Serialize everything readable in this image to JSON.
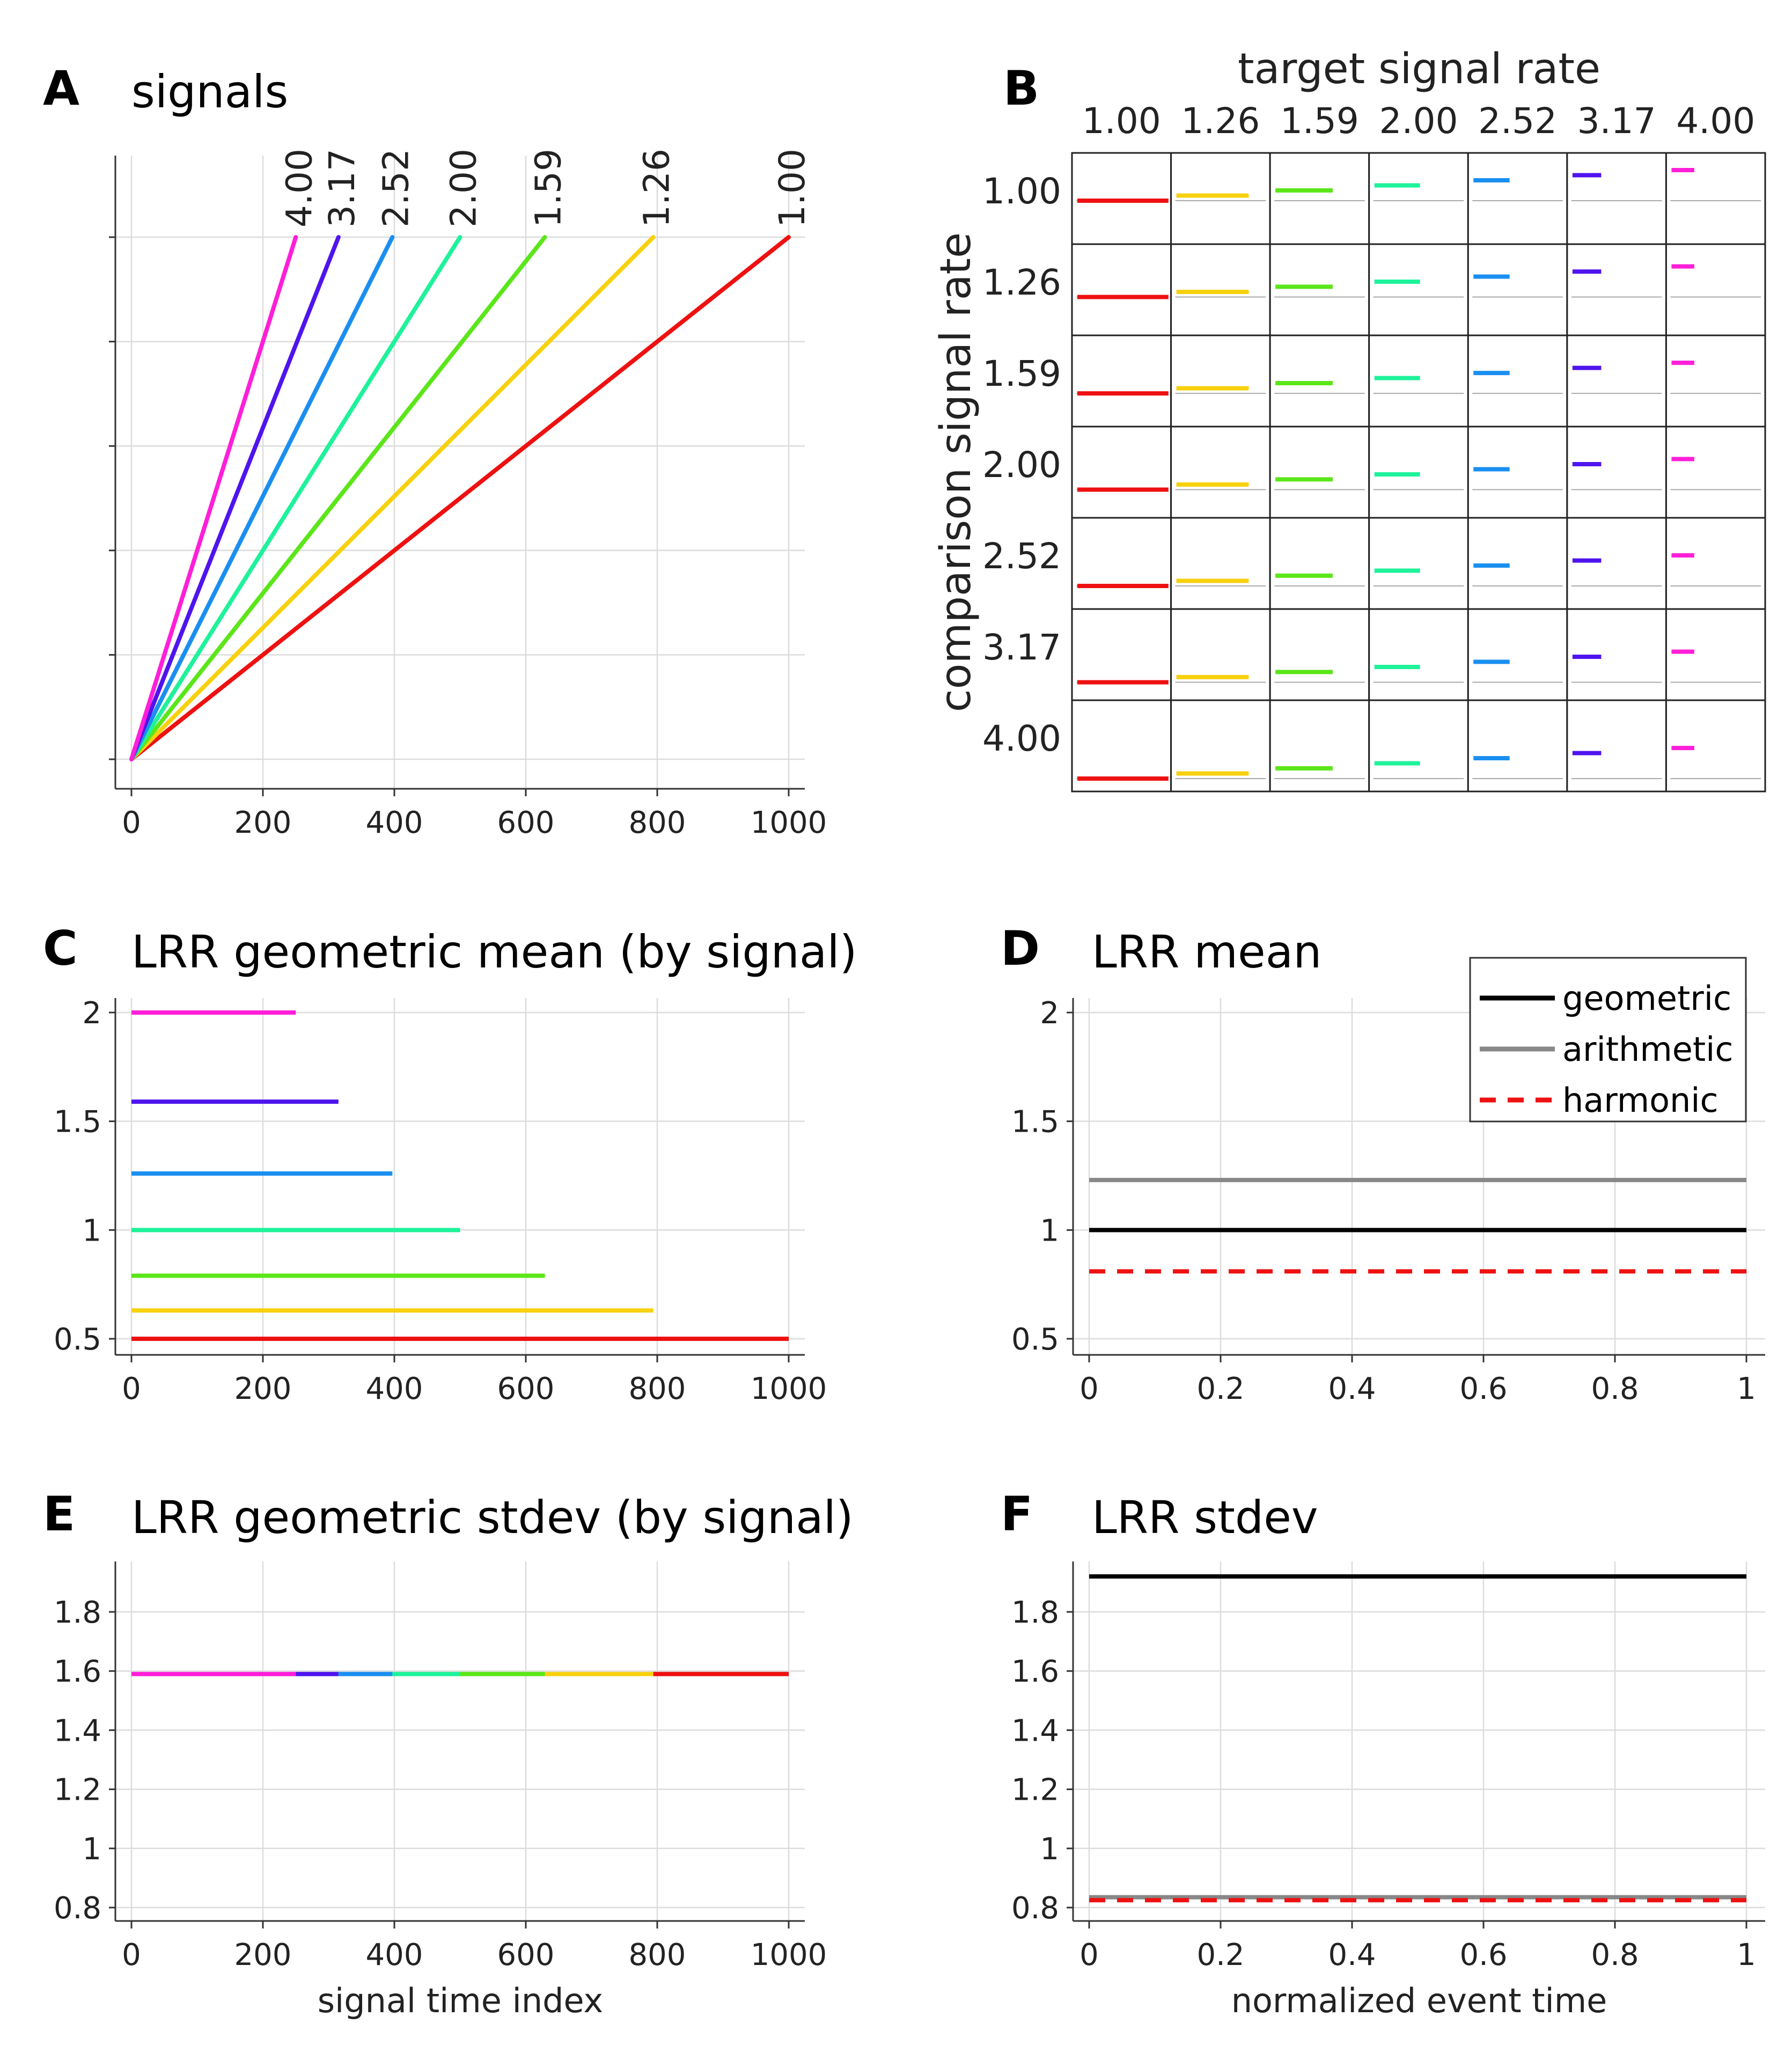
{
  "colors": [
    "#ee1111",
    "#f7d10e",
    "#5be619",
    "#1ef29a",
    "#1a8ff0",
    "#4f14ee",
    "#ff1fd8"
  ],
  "rate_labels": [
    "1.00",
    "1.26",
    "1.59",
    "2.00",
    "2.52",
    "3.17",
    "4.00"
  ],
  "panels": {
    "A": {
      "letter": "A",
      "title": "signals"
    },
    "B": {
      "letter": "B",
      "title": "target signal rate",
      "ylabel": "comparison signal rate"
    },
    "C": {
      "letter": "C",
      "title": "LRR geometric mean (by signal)"
    },
    "D": {
      "letter": "D",
      "title": "LRR mean"
    },
    "E": {
      "letter": "E",
      "title": "LRR geometric stdev (by signal)",
      "xlabel": "signal time index"
    },
    "F": {
      "letter": "F",
      "title": "LRR stdev",
      "xlabel": "normalized event time"
    }
  },
  "legend": {
    "geometric": "geometric",
    "arithmetic": "arithmetic",
    "harmonic": "harmonic"
  },
  "chart_data": [
    {
      "panel": "A",
      "type": "line",
      "title": "signals",
      "x_ticks": [
        "0",
        "200",
        "400",
        "600",
        "800",
        "1000"
      ],
      "xlim": [
        0,
        1000
      ],
      "ylim": [
        0,
        1
      ],
      "grid": true,
      "series": [
        {
          "name": "1.00",
          "x": [
            0,
            1000
          ],
          "y": [
            0,
            1
          ]
        },
        {
          "name": "1.26",
          "x": [
            0,
            794
          ],
          "y": [
            0,
            1
          ]
        },
        {
          "name": "1.59",
          "x": [
            0,
            629
          ],
          "y": [
            0,
            1
          ]
        },
        {
          "name": "2.00",
          "x": [
            0,
            500
          ],
          "y": [
            0,
            1
          ]
        },
        {
          "name": "2.52",
          "x": [
            0,
            397
          ],
          "y": [
            0,
            1
          ]
        },
        {
          "name": "3.17",
          "x": [
            0,
            315
          ],
          "y": [
            0,
            1
          ]
        },
        {
          "name": "4.00",
          "x": [
            0,
            250
          ],
          "y": [
            0,
            1
          ]
        }
      ]
    },
    {
      "panel": "B",
      "type": "heatmap",
      "title": "target signal rate",
      "xlabel": "target signal rate",
      "ylabel": "comparison signal rate",
      "columns": [
        "1.00",
        "1.26",
        "1.59",
        "2.00",
        "2.52",
        "3.17",
        "4.00"
      ],
      "rows": [
        "1.00",
        "1.26",
        "1.59",
        "2.00",
        "2.52",
        "3.17",
        "4.00"
      ]
    },
    {
      "panel": "C",
      "type": "line",
      "title": "LRR geometric mean (by signal)",
      "x_ticks": [
        "0",
        "200",
        "400",
        "600",
        "800",
        "1000"
      ],
      "xlim": [
        0,
        1000
      ],
      "y_ticks": [
        "0.5",
        "1",
        "1.5",
        "2"
      ],
      "grid": true,
      "series": [
        {
          "name": "1.00",
          "x": [
            0,
            1000
          ],
          "y": [
            0.5,
            0.5
          ]
        },
        {
          "name": "1.26",
          "x": [
            0,
            794
          ],
          "y": [
            0.63,
            0.63
          ]
        },
        {
          "name": "1.59",
          "x": [
            0,
            629
          ],
          "y": [
            0.79,
            0.79
          ]
        },
        {
          "name": "2.00",
          "x": [
            0,
            500
          ],
          "y": [
            1.0,
            1.0
          ]
        },
        {
          "name": "2.52",
          "x": [
            0,
            397
          ],
          "y": [
            1.26,
            1.26
          ]
        },
        {
          "name": "3.17",
          "x": [
            0,
            315
          ],
          "y": [
            1.59,
            1.59
          ]
        },
        {
          "name": "4.00",
          "x": [
            0,
            250
          ],
          "y": [
            2.0,
            2.0
          ]
        }
      ]
    },
    {
      "panel": "D",
      "type": "line",
      "title": "LRR mean",
      "x_ticks": [
        "0",
        "0.2",
        "0.4",
        "0.6",
        "0.8",
        "1"
      ],
      "xlim": [
        0,
        1
      ],
      "y_ticks": [
        "0.5",
        "1",
        "1.5",
        "2"
      ],
      "grid": true,
      "legend_position": "top-right",
      "series": [
        {
          "name": "geometric",
          "x": [
            0,
            1
          ],
          "y": [
            1.0,
            1.0
          ]
        },
        {
          "name": "arithmetic",
          "x": [
            0,
            1
          ],
          "y": [
            1.23,
            1.23
          ]
        },
        {
          "name": "harmonic",
          "x": [
            0,
            1
          ],
          "y": [
            0.81,
            0.81
          ]
        }
      ]
    },
    {
      "panel": "E",
      "type": "line",
      "title": "LRR geometric stdev (by signal)",
      "xlabel": "signal time index",
      "x_ticks": [
        "0",
        "200",
        "400",
        "600",
        "800",
        "1000"
      ],
      "xlim": [
        0,
        1000
      ],
      "y_ticks": [
        "0.8",
        "1",
        "1.2",
        "1.4",
        "1.6",
        "1.8"
      ],
      "grid": true,
      "series": [
        {
          "name": "4.00",
          "x": [
            0,
            250
          ],
          "y": [
            1.59,
            1.59
          ]
        },
        {
          "name": "3.17",
          "x": [
            250,
            315
          ],
          "y": [
            1.59,
            1.59
          ]
        },
        {
          "name": "2.52",
          "x": [
            315,
            397
          ],
          "y": [
            1.59,
            1.59
          ]
        },
        {
          "name": "2.00",
          "x": [
            397,
            500
          ],
          "y": [
            1.59,
            1.59
          ]
        },
        {
          "name": "1.59",
          "x": [
            500,
            629
          ],
          "y": [
            1.59,
            1.59
          ]
        },
        {
          "name": "1.26",
          "x": [
            629,
            794
          ],
          "y": [
            1.59,
            1.59
          ]
        },
        {
          "name": "1.00",
          "x": [
            794,
            1000
          ],
          "y": [
            1.59,
            1.59
          ]
        }
      ]
    },
    {
      "panel": "F",
      "type": "line",
      "title": "LRR stdev",
      "xlabel": "normalized event time",
      "x_ticks": [
        "0",
        "0.2",
        "0.4",
        "0.6",
        "0.8",
        "1"
      ],
      "xlim": [
        0,
        1
      ],
      "y_ticks": [
        "0.8",
        "1",
        "1.2",
        "1.4",
        "1.6",
        "1.8"
      ],
      "grid": true,
      "series": [
        {
          "name": "geometric",
          "x": [
            0,
            1
          ],
          "y": [
            1.92,
            1.92
          ]
        },
        {
          "name": "arithmetic",
          "x": [
            0,
            1
          ],
          "y": [
            0.835,
            0.835
          ]
        },
        {
          "name": "harmonic",
          "x": [
            0,
            1
          ],
          "y": [
            0.825,
            0.825
          ]
        }
      ]
    }
  ]
}
